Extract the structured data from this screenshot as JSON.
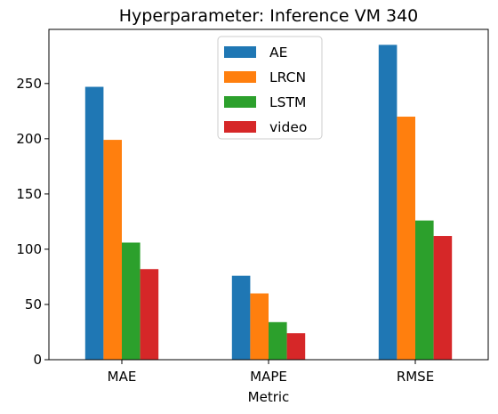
{
  "chart_data": {
    "type": "bar",
    "title": "Hyperparameter: Inference VM 340",
    "xlabel": "Metric",
    "ylabel": "",
    "categories": [
      "MAE",
      "MAPE",
      "RMSE"
    ],
    "series": [
      {
        "name": "AE",
        "color": "#1f77b4",
        "values": [
          247,
          76,
          285
        ]
      },
      {
        "name": "LRCN",
        "color": "#ff7f0e",
        "values": [
          199,
          60,
          220
        ]
      },
      {
        "name": "LSTM",
        "color": "#2ca02c",
        "values": [
          106,
          34,
          126
        ]
      },
      {
        "name": "video",
        "color": "#d62728",
        "values": [
          82,
          24,
          112
        ]
      }
    ],
    "ylim": [
      0,
      299
    ],
    "yticks": [
      0,
      50,
      100,
      150,
      200,
      250
    ],
    "grid": false,
    "legend_position": "top-center"
  }
}
